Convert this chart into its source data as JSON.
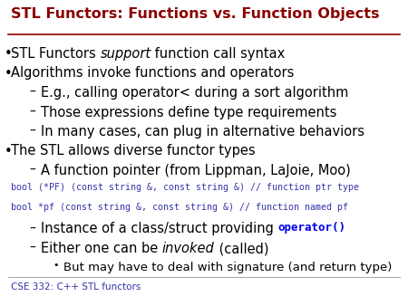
{
  "title": "STL Functors: Functions vs. Function Objects",
  "title_color": "#8B0000",
  "background_color": "#FFFFFF",
  "footer_text": "CSE 332: C++ STL functors",
  "footer_color": "#3333AA",
  "lines": [
    {
      "indent": 0,
      "bullet": "bullet",
      "parts": [
        {
          "text": "STL Functors ",
          "style": "normal",
          "color": "#000000"
        },
        {
          "text": "support",
          "style": "italic",
          "color": "#000000"
        },
        {
          "text": " function call syntax",
          "style": "normal",
          "color": "#000000"
        }
      ]
    },
    {
      "indent": 0,
      "bullet": "bullet",
      "parts": [
        {
          "text": "Algorithms invoke functions and operators",
          "style": "normal",
          "color": "#000000"
        }
      ]
    },
    {
      "indent": 1,
      "bullet": "dash",
      "parts": [
        {
          "text": "E.g., calling operator< during a sort algorithm",
          "style": "normal",
          "color": "#000000"
        }
      ]
    },
    {
      "indent": 1,
      "bullet": "dash",
      "parts": [
        {
          "text": "Those expressions define type requirements",
          "style": "normal",
          "color": "#000000"
        }
      ]
    },
    {
      "indent": 1,
      "bullet": "dash",
      "parts": [
        {
          "text": "In many cases, can plug in alternative behaviors",
          "style": "normal",
          "color": "#000000"
        }
      ]
    },
    {
      "indent": 0,
      "bullet": "bullet",
      "parts": [
        {
          "text": "The STL allows diverse functor types",
          "style": "normal",
          "color": "#000000"
        }
      ]
    },
    {
      "indent": 1,
      "bullet": "dash",
      "parts": [
        {
          "text": "A function pointer (from Lippman, LaJoie, Moo)",
          "style": "normal",
          "color": "#000000"
        }
      ]
    },
    {
      "indent": 0,
      "bullet": "none",
      "parts": [
        {
          "text": "bool (*PF) (const string &, const string &) // function ptr type",
          "style": "mono",
          "color": "#3333AA"
        }
      ]
    },
    {
      "indent": 0,
      "bullet": "none",
      "parts": [
        {
          "text": "bool *pf (const string &, const string &) // function named pf",
          "style": "mono",
          "color": "#3333AA"
        }
      ]
    },
    {
      "indent": 1,
      "bullet": "dash",
      "parts": [
        {
          "text": "Instance of a class/struct providing ",
          "style": "normal",
          "color": "#000000"
        },
        {
          "text": "operator()",
          "style": "mono_bold",
          "color": "#0000EE"
        }
      ]
    },
    {
      "indent": 1,
      "bullet": "dash",
      "parts": [
        {
          "text": "Either one can be ",
          "style": "normal",
          "color": "#000000"
        },
        {
          "text": "invoked",
          "style": "italic",
          "color": "#000000"
        },
        {
          "text": " (called)",
          "style": "normal",
          "color": "#000000"
        }
      ]
    },
    {
      "indent": 2,
      "bullet": "bullet_small",
      "parts": [
        {
          "text": "But may have to deal with signature (and return type)",
          "style": "normal_small",
          "color": "#000000"
        }
      ]
    }
  ]
}
